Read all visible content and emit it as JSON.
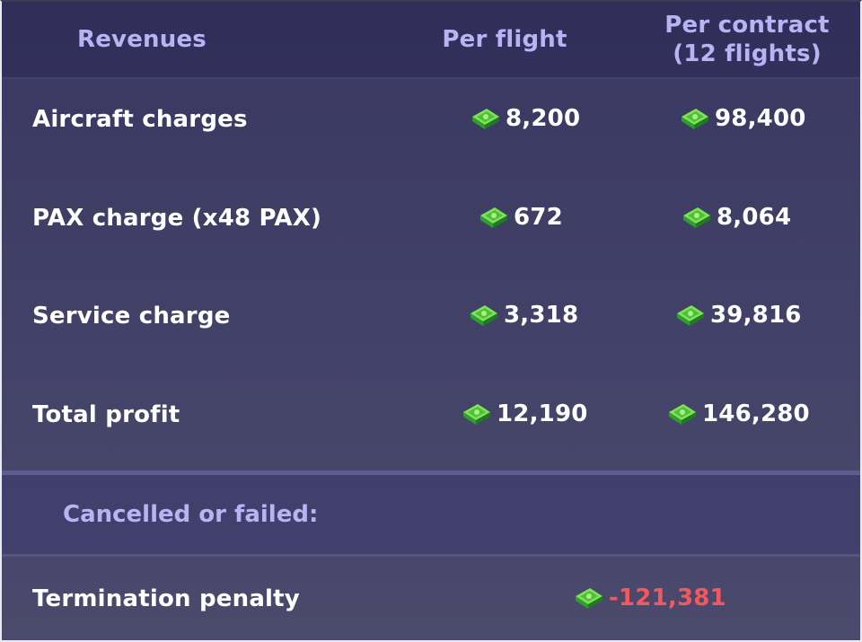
{
  "header": {
    "revenues": "Revenues",
    "per_flight": "Per flight",
    "per_contract_line1": "Per contract",
    "per_contract_line2": "(12 flights)"
  },
  "rows": [
    {
      "label": "Aircraft charges",
      "per_flight": "8,200",
      "per_contract": "98,400"
    },
    {
      "label": "PAX charge (x48 PAX)",
      "per_flight": "672",
      "per_contract": "8,064"
    },
    {
      "label": "Service charge",
      "per_flight": "3,318",
      "per_contract": "39,816"
    },
    {
      "label": "Total profit",
      "per_flight": "12,190",
      "per_contract": "146,280"
    }
  ],
  "cancelled": {
    "heading": "Cancelled or failed:",
    "penalty_label": "Termination penalty",
    "penalty_value": "-121,381"
  },
  "colors": {
    "header_text": "#b8b4f4",
    "negative": "#f1595c",
    "cash_green": "#49c43b"
  },
  "icons": {
    "currency": "cash-stack-icon"
  }
}
